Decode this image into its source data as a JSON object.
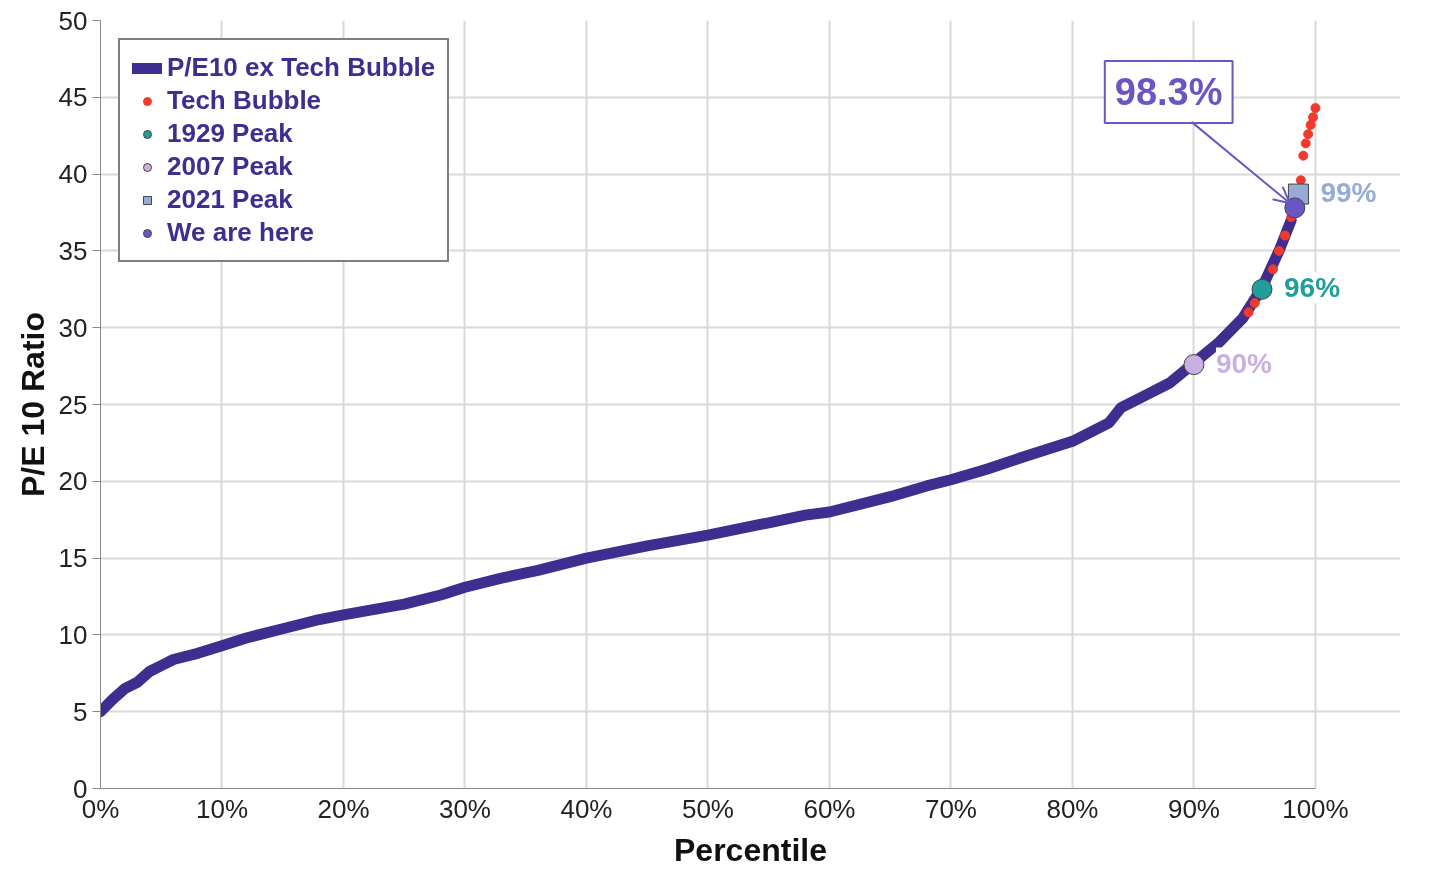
{
  "chart_data": {
    "type": "line",
    "xlabel": "Percentile",
    "ylabel": "P/E 10 Ratio",
    "xlim": [
      0,
      100
    ],
    "ylim": [
      0,
      50
    ],
    "xticks": [
      {
        "value": 0,
        "label": "0%"
      },
      {
        "value": 10,
        "label": "10%"
      },
      {
        "value": 20,
        "label": "20%"
      },
      {
        "value": 30,
        "label": "30%"
      },
      {
        "value": 40,
        "label": "40%"
      },
      {
        "value": 50,
        "label": "50%"
      },
      {
        "value": 60,
        "label": "60%"
      },
      {
        "value": 70,
        "label": "70%"
      },
      {
        "value": 80,
        "label": "80%"
      },
      {
        "value": 90,
        "label": "90%"
      },
      {
        "value": 100,
        "label": "100%"
      }
    ],
    "yticks": [
      0,
      5,
      10,
      15,
      20,
      25,
      30,
      35,
      40,
      45,
      50
    ],
    "grid": true,
    "legend": "top left",
    "series": [
      {
        "name": "P/E10 ex Tech Bubble",
        "color": "#3f2d8f",
        "x": [
          0,
          1,
          2,
          3,
          4,
          5,
          6,
          8,
          10,
          12,
          15,
          18,
          20,
          25,
          28,
          30,
          33,
          36,
          40,
          45,
          50,
          55,
          58,
          60,
          65,
          68,
          70,
          73,
          76,
          80,
          83,
          84,
          86,
          88,
          92,
          94,
          95.6,
          97,
          98
        ],
        "values": [
          5.0,
          5.8,
          6.5,
          6.9,
          7.6,
          8.0,
          8.4,
          8.8,
          9.3,
          9.8,
          10.4,
          11.0,
          11.3,
          12.0,
          12.6,
          13.1,
          13.7,
          14.2,
          15.0,
          15.8,
          16.5,
          17.3,
          17.8,
          18.0,
          19.0,
          19.7,
          20.1,
          20.8,
          21.6,
          22.6,
          23.8,
          24.8,
          25.6,
          26.4,
          29.0,
          30.6,
          32.6,
          35.0,
          37.0
        ]
      },
      {
        "name": "Tech Bubble",
        "type": "scatter",
        "marker": "circle",
        "color": "#f03a2e",
        "x": [
          94.5,
          95.0,
          96.0,
          96.5,
          97.0,
          97.5,
          98.0,
          98.8,
          99.0,
          99.2,
          99.4,
          99.6,
          99.8,
          100
        ],
        "values": [
          31.0,
          31.6,
          null,
          33.8,
          35.0,
          36.0,
          37.2,
          39.6,
          41.2,
          42.0,
          42.6,
          43.2,
          43.7,
          44.3
        ]
      },
      {
        "name": "1929 Peak",
        "type": "scatter",
        "marker": "circle",
        "color": "#1f9e9a",
        "x": [
          95.6
        ],
        "values": [
          32.5
        ]
      },
      {
        "name": "2007 Peak",
        "type": "scatter",
        "marker": "circle",
        "color": "#c9b0e0",
        "x": [
          90.0
        ],
        "values": [
          27.6
        ]
      },
      {
        "name": "2021 Peak",
        "type": "scatter",
        "marker": "square",
        "color": "#94acd6",
        "x": [
          98.6
        ],
        "values": [
          38.7
        ]
      },
      {
        "name": "We are here",
        "type": "scatter",
        "marker": "circle",
        "color": "#6a55c2",
        "x": [
          98.3
        ],
        "values": [
          37.8
        ]
      }
    ],
    "annotations": [
      {
        "text": "98.3%",
        "x": 98.3,
        "y": 37.8
      },
      {
        "text": "99%",
        "x": 98.6,
        "y": 38.7
      },
      {
        "text": "96%",
        "x": 95.6,
        "y": 32.5
      },
      {
        "text": "90%",
        "x": 90.0,
        "y": 27.6
      }
    ]
  }
}
